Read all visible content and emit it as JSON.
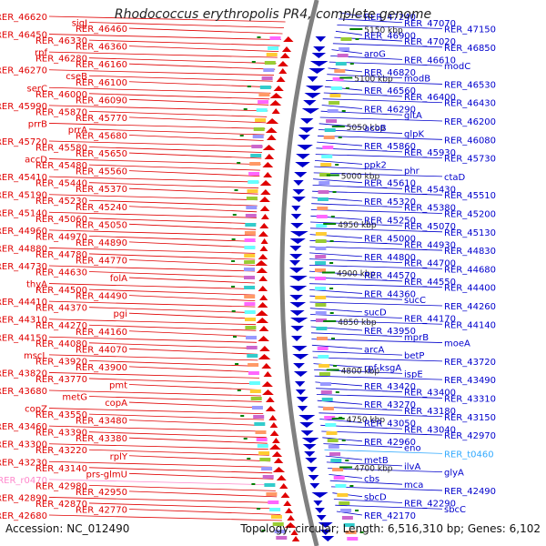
{
  "title": "Rhodococcus erythropolis PR4, complete genome",
  "footer": {
    "accession": "Accession: NC_012490",
    "summary": "Topology: circular; Length: 6,516,310 bp; Genes: 6,102"
  },
  "colors": {
    "left_genes": "#e00000",
    "right_genes": "#0000cc",
    "rna_genes": "#ff88cc",
    "rna_right": "#33aaff",
    "backbone": "#808080",
    "ticks": "#008000"
  },
  "scale_ticks": [
    "5150 kbp",
    "5100 kbp",
    "5050 kbp",
    "5000 kbp",
    "4950 kbp",
    "4900 kbp",
    "4850 kbp",
    "4800 kbp",
    "4750 kbp",
    "4700 kbp"
  ],
  "left_labels": [
    {
      "text": "RER_46620",
      "kind": "gene"
    },
    {
      "text": "sigJ",
      "kind": "gene"
    },
    {
      "text": "RER_46460",
      "kind": "gene"
    },
    {
      "text": "RER_46450",
      "kind": "gene"
    },
    {
      "text": "RER_46330",
      "kind": "gene"
    },
    {
      "text": "RER_46360",
      "kind": "gene"
    },
    {
      "text": "rpf",
      "kind": "gene"
    },
    {
      "text": "RER_46280",
      "kind": "gene"
    },
    {
      "text": "RER_46160",
      "kind": "gene"
    },
    {
      "text": "RER_46270",
      "kind": "gene"
    },
    {
      "text": "cseB",
      "kind": "gene"
    },
    {
      "text": "RER_46100",
      "kind": "gene"
    },
    {
      "text": "serC",
      "kind": "gene"
    },
    {
      "text": "RER_46000",
      "kind": "gene"
    },
    {
      "text": "RER_46090",
      "kind": "gene"
    },
    {
      "text": "RER_45990",
      "kind": "gene"
    },
    {
      "text": "RER_45870",
      "kind": "gene"
    },
    {
      "text": "RER_45770",
      "kind": "gene"
    },
    {
      "text": "prrB",
      "kind": "gene"
    },
    {
      "text": "prrA",
      "kind": "gene"
    },
    {
      "text": "RER_45680",
      "kind": "gene"
    },
    {
      "text": "RER_45720",
      "kind": "gene"
    },
    {
      "text": "RER_45580",
      "kind": "gene"
    },
    {
      "text": "RER_45650",
      "kind": "gene"
    },
    {
      "text": "accD",
      "kind": "gene"
    },
    {
      "text": "RER_45480",
      "kind": "gene"
    },
    {
      "text": "RER_45560",
      "kind": "gene"
    },
    {
      "text": "RER_45410",
      "kind": "gene"
    },
    {
      "text": "RER_45440",
      "kind": "gene"
    },
    {
      "text": "RER_45370",
      "kind": "gene"
    },
    {
      "text": "RER_45190",
      "kind": "gene"
    },
    {
      "text": "RER_45230",
      "kind": "gene"
    },
    {
      "text": "RER_45240",
      "kind": "gene"
    },
    {
      "text": "RER_45140",
      "kind": "gene"
    },
    {
      "text": "RER_45060",
      "kind": "gene"
    },
    {
      "text": "RER_45050",
      "kind": "gene"
    },
    {
      "text": "RER_44960",
      "kind": "gene"
    },
    {
      "text": "RER_44970",
      "kind": "gene"
    },
    {
      "text": "RER_44890",
      "kind": "gene"
    },
    {
      "text": "RER_44880",
      "kind": "gene"
    },
    {
      "text": "RER_44780",
      "kind": "gene"
    },
    {
      "text": "RER_44770",
      "kind": "gene"
    },
    {
      "text": "RER_44730",
      "kind": "gene"
    },
    {
      "text": "RER_44630",
      "kind": "gene"
    },
    {
      "text": "folA",
      "kind": "gene"
    },
    {
      "text": "thyA",
      "kind": "gene"
    },
    {
      "text": "RER_44500",
      "kind": "gene"
    },
    {
      "text": "RER_44490",
      "kind": "gene"
    },
    {
      "text": "RER_44410",
      "kind": "gene"
    },
    {
      "text": "RER_44370",
      "kind": "gene"
    },
    {
      "text": "pgi",
      "kind": "gene"
    },
    {
      "text": "RER_44310",
      "kind": "gene"
    },
    {
      "text": "RER_44270",
      "kind": "gene"
    },
    {
      "text": "RER_44160",
      "kind": "gene"
    },
    {
      "text": "RER_44150",
      "kind": "gene"
    },
    {
      "text": "RER_44080",
      "kind": "gene"
    },
    {
      "text": "RER_44070",
      "kind": "gene"
    },
    {
      "text": "mscL",
      "kind": "gene"
    },
    {
      "text": "RER_43920",
      "kind": "gene"
    },
    {
      "text": "RER_43900",
      "kind": "gene"
    },
    {
      "text": "RER_43820",
      "kind": "gene"
    },
    {
      "text": "RER_43770",
      "kind": "gene"
    },
    {
      "text": "pmt",
      "kind": "gene"
    },
    {
      "text": "RER_43680",
      "kind": "gene"
    },
    {
      "text": "metG",
      "kind": "gene"
    },
    {
      "text": "copA",
      "kind": "gene"
    },
    {
      "text": "copZ",
      "kind": "gene"
    },
    {
      "text": "RER_43550",
      "kind": "gene"
    },
    {
      "text": "RER_43480",
      "kind": "gene"
    },
    {
      "text": "RER_43460",
      "kind": "gene"
    },
    {
      "text": "RER_43390",
      "kind": "gene"
    },
    {
      "text": "RER_43380",
      "kind": "gene"
    },
    {
      "text": "RER_43300",
      "kind": "gene"
    },
    {
      "text": "RER_43220",
      "kind": "gene"
    },
    {
      "text": "rplY",
      "kind": "gene"
    },
    {
      "text": "RER_43230",
      "kind": "gene"
    },
    {
      "text": "RER_43140",
      "kind": "gene"
    },
    {
      "text": "prs-glmU",
      "kind": "gene"
    },
    {
      "text": "RER_r0470",
      "kind": "rna"
    },
    {
      "text": "RER_42980",
      "kind": "gene"
    },
    {
      "text": "RER_42950",
      "kind": "gene"
    },
    {
      "text": "RER_42890",
      "kind": "gene"
    },
    {
      "text": "RER_42870",
      "kind": "gene"
    },
    {
      "text": "RER_42770",
      "kind": "gene"
    },
    {
      "text": "RER_42680",
      "kind": "gene"
    }
  ],
  "right_labels": [
    {
      "text": "RER_47240",
      "kind": "gene"
    },
    {
      "text": "RER_47070",
      "kind": "gene"
    },
    {
      "text": "RER_47150",
      "kind": "gene"
    },
    {
      "text": "RER_46900",
      "kind": "gene"
    },
    {
      "text": "RER_47020",
      "kind": "gene"
    },
    {
      "text": "RER_46850",
      "kind": "gene"
    },
    {
      "text": "aroG",
      "kind": "gene"
    },
    {
      "text": "RER_46610",
      "kind": "gene"
    },
    {
      "text": "modC",
      "kind": "gene"
    },
    {
      "text": "RER_46820",
      "kind": "gene"
    },
    {
      "text": "modB",
      "kind": "gene"
    },
    {
      "text": "RER_46530",
      "kind": "gene"
    },
    {
      "text": "RER_46560",
      "kind": "gene"
    },
    {
      "text": "RER_46400",
      "kind": "gene"
    },
    {
      "text": "RER_46430",
      "kind": "gene"
    },
    {
      "text": "RER_46290",
      "kind": "gene"
    },
    {
      "text": "gltA",
      "kind": "gene"
    },
    {
      "text": "RER_46200",
      "kind": "gene"
    },
    {
      "text": "acoB",
      "kind": "gene"
    },
    {
      "text": "glpK",
      "kind": "gene"
    },
    {
      "text": "RER_46080",
      "kind": "gene"
    },
    {
      "text": "RER_45860",
      "kind": "gene"
    },
    {
      "text": "RER_45930",
      "kind": "gene"
    },
    {
      "text": "RER_45730",
      "kind": "gene"
    },
    {
      "text": "ppk2",
      "kind": "gene"
    },
    {
      "text": "phr",
      "kind": "gene"
    },
    {
      "text": "ctaD",
      "kind": "gene"
    },
    {
      "text": "RER_45610",
      "kind": "gene"
    },
    {
      "text": "RER_45430",
      "kind": "gene"
    },
    {
      "text": "RER_45510",
      "kind": "gene"
    },
    {
      "text": "RER_45320",
      "kind": "gene"
    },
    {
      "text": "RER_45380",
      "kind": "gene"
    },
    {
      "text": "RER_45200",
      "kind": "gene"
    },
    {
      "text": "RER_45250",
      "kind": "gene"
    },
    {
      "text": "RER_45070",
      "kind": "gene"
    },
    {
      "text": "RER_45130",
      "kind": "gene"
    },
    {
      "text": "RER_45000",
      "kind": "gene"
    },
    {
      "text": "RER_44930",
      "kind": "gene"
    },
    {
      "text": "RER_44830",
      "kind": "gene"
    },
    {
      "text": "RER_44800",
      "kind": "gene"
    },
    {
      "text": "RER_44700",
      "kind": "gene"
    },
    {
      "text": "RER_44680",
      "kind": "gene"
    },
    {
      "text": "RER_44570",
      "kind": "gene"
    },
    {
      "text": "RER_44550",
      "kind": "gene"
    },
    {
      "text": "RER_44400",
      "kind": "gene"
    },
    {
      "text": "RER_44360",
      "kind": "gene"
    },
    {
      "text": "sucC",
      "kind": "gene"
    },
    {
      "text": "RER_44260",
      "kind": "gene"
    },
    {
      "text": "sucD",
      "kind": "gene"
    },
    {
      "text": "RER_44170",
      "kind": "gene"
    },
    {
      "text": "RER_44140",
      "kind": "gene"
    },
    {
      "text": "RER_43950",
      "kind": "gene"
    },
    {
      "text": "mprB",
      "kind": "gene"
    },
    {
      "text": "moeA",
      "kind": "gene"
    },
    {
      "text": "arcA",
      "kind": "gene"
    },
    {
      "text": "betP",
      "kind": "gene"
    },
    {
      "text": "RER_43720",
      "kind": "gene"
    },
    {
      "text": "rpf-ksgA",
      "kind": "gene"
    },
    {
      "text": "ispE",
      "kind": "gene"
    },
    {
      "text": "RER_43490",
      "kind": "gene"
    },
    {
      "text": "RER_43420",
      "kind": "gene"
    },
    {
      "text": "RER_43400",
      "kind": "gene"
    },
    {
      "text": "RER_43310",
      "kind": "gene"
    },
    {
      "text": "RER_43270",
      "kind": "gene"
    },
    {
      "text": "RER_43180",
      "kind": "gene"
    },
    {
      "text": "RER_43150",
      "kind": "gene"
    },
    {
      "text": "RER_43050",
      "kind": "gene"
    },
    {
      "text": "RER_43040",
      "kind": "gene"
    },
    {
      "text": "RER_42970",
      "kind": "gene"
    },
    {
      "text": "RER_42960",
      "kind": "gene"
    },
    {
      "text": "eno",
      "kind": "gene"
    },
    {
      "text": "RER_t0460",
      "kind": "rna"
    },
    {
      "text": "metB",
      "kind": "gene"
    },
    {
      "text": "ilvA",
      "kind": "gene"
    },
    {
      "text": "glyA",
      "kind": "gene"
    },
    {
      "text": "cbs",
      "kind": "gene"
    },
    {
      "text": "mca",
      "kind": "gene"
    },
    {
      "text": "RER_42490",
      "kind": "gene"
    },
    {
      "text": "sbcD",
      "kind": "gene"
    },
    {
      "text": "RER_42290",
      "kind": "gene"
    },
    {
      "text": "sbcC",
      "kind": "gene"
    },
    {
      "text": "RER_42170",
      "kind": "gene"
    }
  ]
}
